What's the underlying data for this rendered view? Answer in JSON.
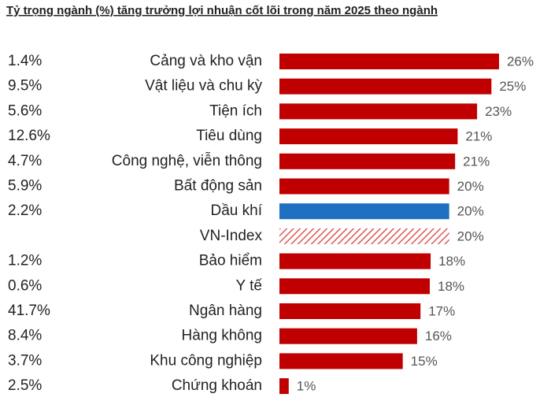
{
  "chart_data": {
    "type": "bar",
    "orientation": "horizontal",
    "title": "Tỷ trọng ngành (%) tăng trưởng lợi nhuận cốt lõi trong năm 2025 theo ngành",
    "categories": [
      "Cảng và kho vận",
      "Vật liệu và chu kỳ",
      "Tiện ích",
      "Tiêu dùng",
      "Công nghệ, viễn thông",
      "Bất động sản",
      "Dầu khí",
      "VN-Index",
      "Bảo hiểm",
      "Y tế",
      "Ngân hàng",
      "Hàng không",
      "Khu công nghiệp",
      "Chứng khoán"
    ],
    "weights": [
      "1.4%",
      "9.5%",
      "5.6%",
      "12.6%",
      "4.7%",
      "5.9%",
      "2.2%",
      null,
      "1.2%",
      "0.6%",
      "41.7%",
      "8.4%",
      "3.7%",
      "2.5%"
    ],
    "values": [
      26.0,
      25.1,
      23.4,
      21.1,
      20.8,
      20.1,
      20.1,
      20.1,
      17.9,
      17.8,
      16.7,
      16.3,
      14.6,
      1.1
    ],
    "value_labels": [
      "26%",
      "25%",
      "23%",
      "21%",
      "21%",
      "20%",
      "20%",
      "20%",
      "18%",
      "18%",
      "17%",
      "16%",
      "15%",
      "1%"
    ],
    "colors": [
      "#c00000",
      "#c00000",
      "#c00000",
      "#c00000",
      "#c00000",
      "#c00000",
      "#1f6fc0",
      "#e05555",
      "#c00000",
      "#c00000",
      "#c00000",
      "#c00000",
      "#c00000",
      "#c00000"
    ],
    "hatched": "VN-Index"
  }
}
